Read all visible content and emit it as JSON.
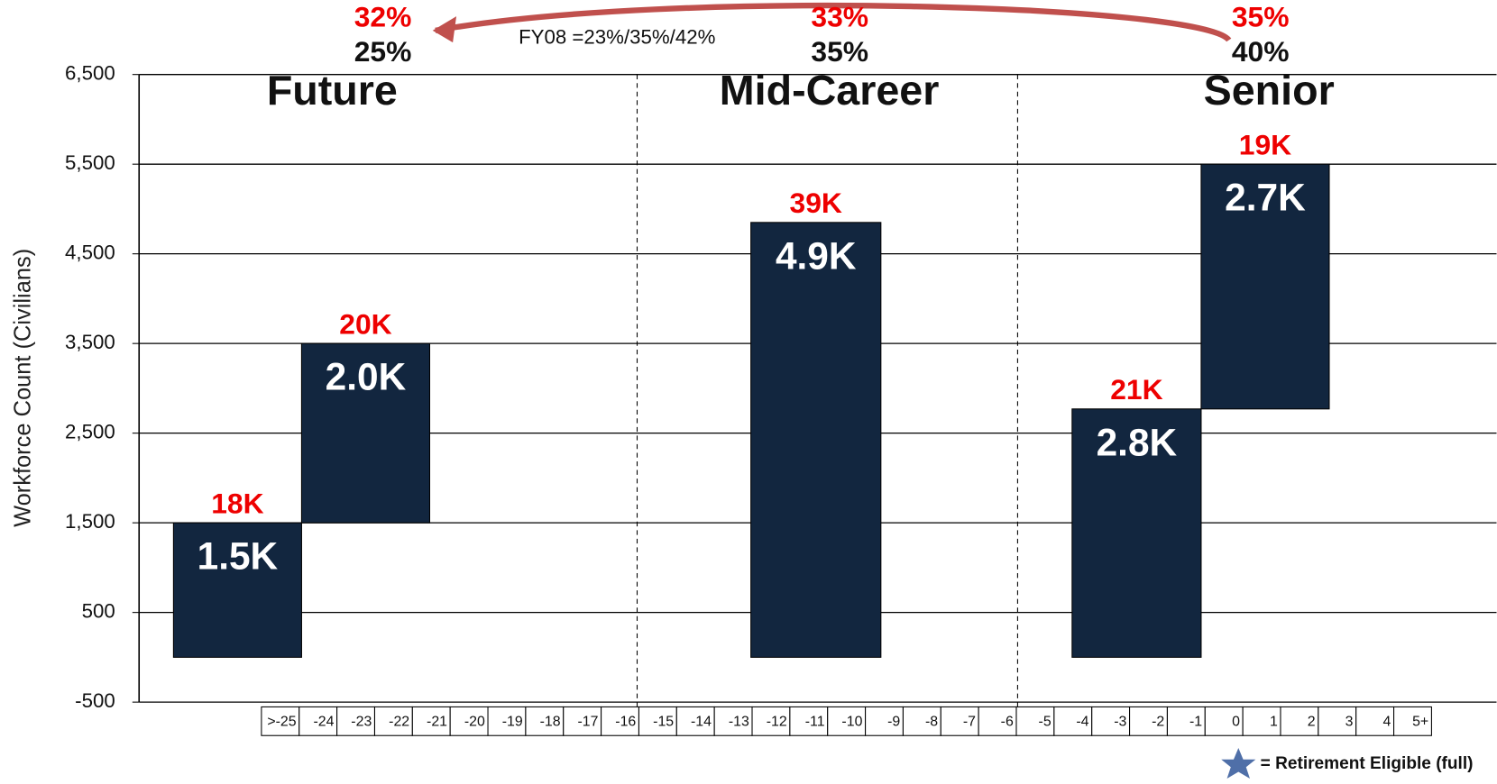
{
  "chart_data": {
    "type": "waterfall",
    "y_label": "Workforce Count (Civilians)",
    "ylim": [
      -500,
      6500
    ],
    "yticks": [
      -500,
      500,
      {
        "value": 1500,
        "label": "1,500"
      },
      {
        "value": 2500,
        "label": "2,500"
      },
      {
        "value": 3500,
        "label": "3,500"
      },
      {
        "value": 4500,
        "label": "4,500"
      },
      {
        "value": 5500,
        "label": "5,500"
      },
      {
        "value": 6500,
        "label": "6,500"
      }
    ],
    "grid": true,
    "color": "#12263f",
    "categories": [
      ">-25",
      "-24",
      "-23",
      "-22",
      "-21",
      "-20",
      "-19",
      "-18",
      "-17",
      "-16",
      "-15",
      "-14",
      "-13",
      "-12",
      "-11",
      "-10",
      "-9",
      "-8",
      "-7",
      "-6",
      "-5",
      "-4",
      "-3",
      "-2",
      "-1",
      "0",
      "1",
      "2",
      "3",
      "4",
      "5+"
    ],
    "groups": [
      {
        "name": "Future",
        "share_red": "32%",
        "share": "25%",
        "values": [
          1500,
          2000
        ],
        "value_labels": [
          "1.5K",
          "2.0K"
        ],
        "top_labels": [
          "18K",
          "20K"
        ]
      },
      {
        "name": "Mid-Career",
        "share_red": "33%",
        "share": "35%",
        "values": [
          4850
        ],
        "value_labels": [
          "4.9K"
        ],
        "top_labels": [
          "39K"
        ]
      },
      {
        "name": "Senior",
        "share_red": "35%",
        "share": "40%",
        "values": [
          2770,
          2730
        ],
        "value_labels": [
          "2.8K",
          "2.7K"
        ],
        "top_labels": [
          "21K",
          "19K"
        ]
      }
    ],
    "annotation": "FY08 =23%/35%/42%",
    "legend": "= Retirement Eligible (full)"
  }
}
